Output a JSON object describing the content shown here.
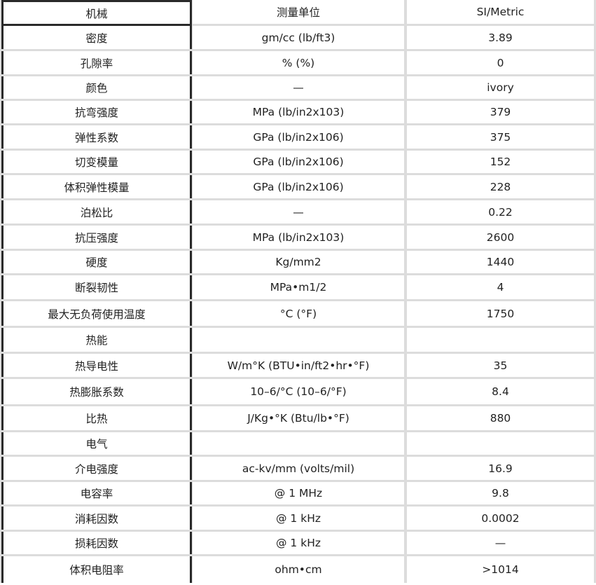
{
  "header": [
    "机械",
    "测量单位",
    "SI/Metric"
  ],
  "rows": [
    [
      "密度",
      "gm/cc (lb/ft3)",
      "3.89"
    ],
    [
      "孔隙率",
      "% (%)",
      "0"
    ],
    [
      "颜色",
      "—",
      "ivory"
    ],
    [
      "抗弯强度",
      "MPa (lb/in2x103)",
      "379"
    ],
    [
      "弹性系数",
      "GPa (lb/in2x106)",
      "375"
    ],
    [
      "切变模量",
      "GPa (lb/in2x106)",
      "152"
    ],
    [
      "体积弹性模量",
      "GPa (lb/in2x106)",
      "228"
    ],
    [
      "泊松比",
      "—",
      "0.22"
    ],
    [
      "抗压强度",
      "MPa (lb/in2x103)",
      "2600"
    ],
    [
      "硬度",
      "Kg/mm2",
      "1440"
    ],
    [
      "断裂韧性",
      "MPa•m1/2",
      "4"
    ],
    [
      "最大无负荷使用温度",
      "°C (°F)",
      "1750"
    ],
    [
      "热能",
      "",
      ""
    ],
    [
      "热导电性",
      "W/m°K (BTU•in/ft2•hr•°F)",
      "35"
    ],
    [
      "热膨胀系数",
      "10–6/°C (10–6/°F)",
      "8.4"
    ],
    [
      "比热",
      "J/Kg•°K (Btu/lb•°F)",
      "880"
    ],
    [
      "电气",
      "",
      ""
    ],
    [
      "介电强度",
      "ac-kv/mm (volts/mil)",
      "16.9"
    ],
    [
      "电容率",
      "@ 1 MHz",
      "9.8"
    ],
    [
      "消耗因数",
      "@ 1 kHz",
      "0.0002"
    ],
    [
      "损耗因数",
      "@ 1 kHz",
      "—"
    ],
    [
      "体积电阻率",
      "ohm•cm",
      ">1014"
    ]
  ]
}
